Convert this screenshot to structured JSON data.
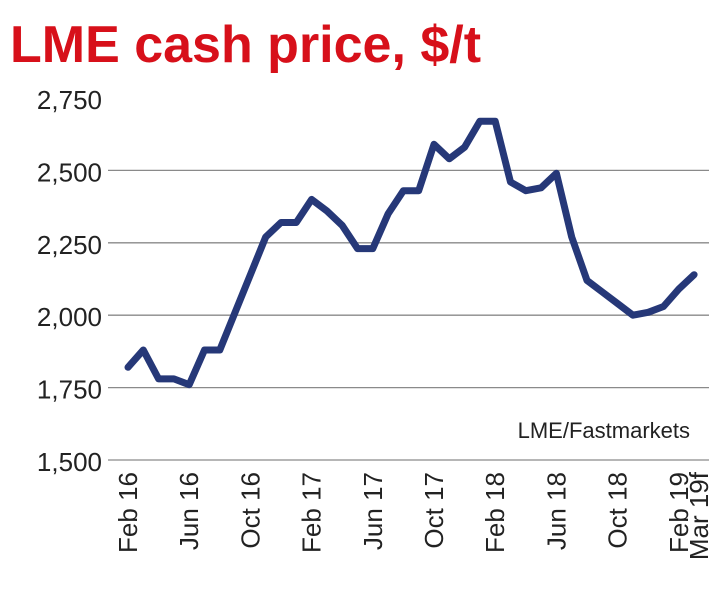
{
  "title": "LME cash price, $/t",
  "source": "LME/Fastmarkets",
  "chart_data": {
    "type": "line",
    "title": "LME cash price, $/t",
    "xlabel": "",
    "ylabel": "",
    "ylim": [
      1500,
      2750
    ],
    "yticks": [
      "2,750",
      "2,500",
      "2,250",
      "2,000",
      "1,750",
      "1,500"
    ],
    "ytick_values": [
      2750,
      2500,
      2250,
      2000,
      1750,
      1500
    ],
    "xticks": [
      "Feb 16",
      "Jun 16",
      "Oct 16",
      "Feb 17",
      "Jun 17",
      "Oct 17",
      "Feb 18",
      "Jun 18",
      "Oct 18",
      "Feb 19",
      "Mar 19f"
    ],
    "xtick_index": [
      0,
      4,
      8,
      12,
      16,
      20,
      24,
      28,
      32,
      36,
      37
    ],
    "grid": true,
    "legend": "none",
    "line_color": "#263878",
    "series": [
      {
        "x": [
          "Feb 16",
          "Mar 16",
          "Apr 16",
          "May 16",
          "Jun 16",
          "Jul 16",
          "Aug 16",
          "Sep 16",
          "Oct 16",
          "Nov 16",
          "Dec 16",
          "Jan 17",
          "Feb 17",
          "Mar 17",
          "Apr 17",
          "May 17",
          "Jun 17",
          "Jul 17",
          "Aug 17",
          "Sep 17",
          "Oct 17",
          "Nov 17",
          "Dec 17",
          "Jan 18",
          "Feb 18",
          "Mar 18",
          "Apr 18",
          "May 18",
          "Jun 18",
          "Jul 18",
          "Aug 18",
          "Sep 18",
          "Oct 18",
          "Nov 18",
          "Dec 18",
          "Jan 19",
          "Feb 19",
          "Mar 19f"
        ],
        "values": [
          1820,
          1880,
          1780,
          1780,
          1760,
          1880,
          1880,
          2010,
          2140,
          2270,
          2320,
          2320,
          2400,
          2360,
          2310,
          2230,
          2230,
          2350,
          2430,
          2430,
          2590,
          2540,
          2580,
          2670,
          2670,
          2460,
          2430,
          2440,
          2490,
          2270,
          2120,
          2080,
          2040,
          2000,
          2010,
          2030,
          2090,
          2140
        ]
      }
    ]
  }
}
